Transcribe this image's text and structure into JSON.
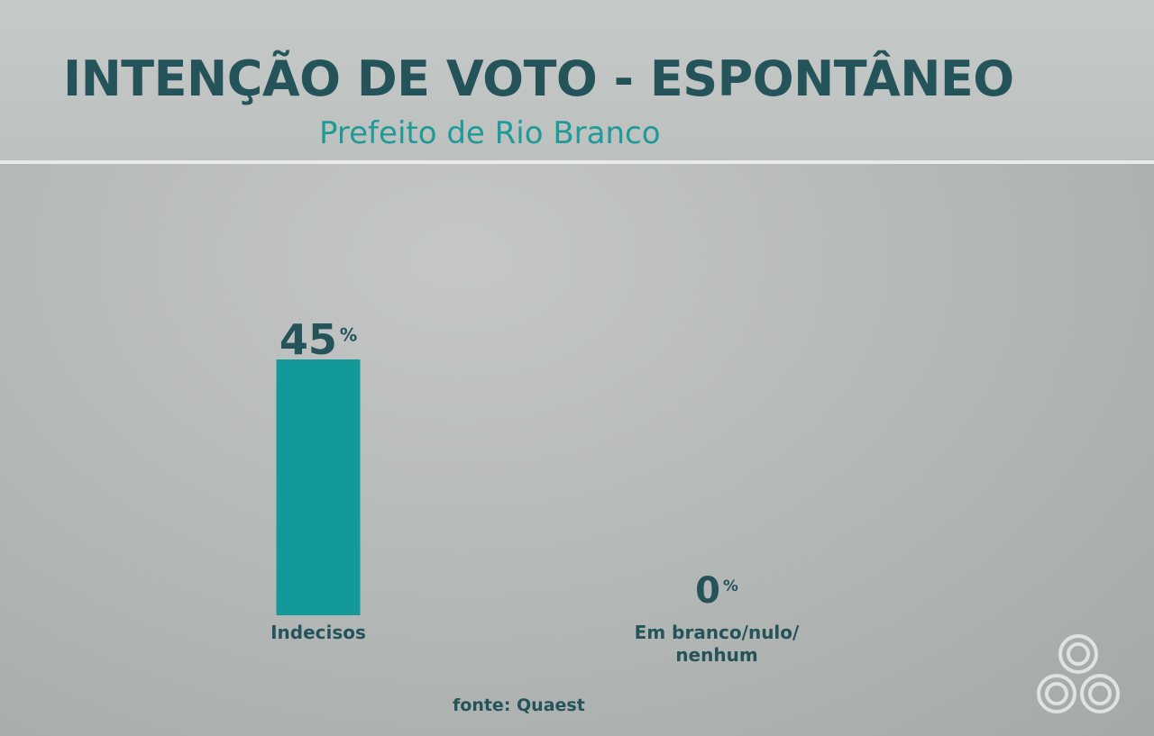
{
  "header": {
    "title": "INTENÇÃO DE VOTO - ESPONTÂNEO",
    "subtitle": "Prefeito de Rio Branco"
  },
  "source": "fonte: Quaest",
  "colors": {
    "bar": "#14999a",
    "title": "#25535a",
    "subtitle": "#1f9a97"
  },
  "logo_icon": "broadcaster-logo-icon",
  "chart_data": {
    "type": "bar",
    "title": "INTENÇÃO DE VOTO - ESPONTÂNEO",
    "subtitle": "Prefeito de Rio Branco",
    "categories": [
      [
        "Indecisos"
      ],
      [
        "Em branco/nulo/",
        "nenhum"
      ]
    ],
    "values": [
      45,
      0
    ],
    "unit": "%",
    "grid": false
  }
}
